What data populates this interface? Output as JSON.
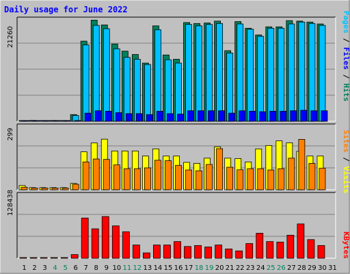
{
  "chart_data": [
    {
      "type": "bar",
      "title": "Daily usage for June 2022",
      "panel": "top",
      "max_label": "21260",
      "categories": [
        "1",
        "2",
        "3",
        "4",
        "5",
        "6",
        "7",
        "8",
        "9",
        "10",
        "11",
        "12",
        "13",
        "14",
        "15",
        "16",
        "17",
        "18",
        "19",
        "20",
        "21",
        "22",
        "23",
        "24",
        "25",
        "26",
        "27",
        "28",
        "29",
        "30",
        "31"
      ],
      "weekend_days": [
        "4",
        "5",
        "11",
        "12",
        "18",
        "19",
        "25",
        "26"
      ],
      "right_label": {
        "pages": "Pages",
        "sep1": " / ",
        "files": "Files",
        "sep2": " / ",
        "hits": "Hits"
      },
      "ylim": [
        0,
        21260
      ],
      "series": [
        {
          "name": "Hits",
          "color": "#00805c",
          "values": [
            150,
            180,
            160,
            170,
            160,
            1400,
            16800,
            21200,
            20200,
            16200,
            14700,
            14000,
            12200,
            20000,
            13900,
            13000,
            20700,
            20500,
            20600,
            21000,
            14800,
            20900,
            19500,
            18100,
            19800,
            19800,
            21100,
            21000,
            20800,
            20400,
            0
          ]
        },
        {
          "name": "Files",
          "color": "#00c0ff",
          "values": [
            110,
            130,
            120,
            130,
            120,
            1200,
            16000,
            20100,
            19400,
            15200,
            13400,
            13000,
            11900,
            19200,
            12900,
            12200,
            20300,
            20000,
            20300,
            20500,
            14300,
            20400,
            19300,
            17800,
            19500,
            19500,
            20400,
            20800,
            20500,
            20100,
            0
          ]
        },
        {
          "name": "Pages",
          "color": "#0000ff",
          "values": [
            20,
            20,
            20,
            20,
            20,
            100,
            1700,
            2200,
            2100,
            1800,
            1600,
            1600,
            1400,
            2100,
            1600,
            1500,
            2200,
            2200,
            2200,
            2200,
            1700,
            2200,
            2100,
            2000,
            2100,
            2100,
            2200,
            2300,
            2200,
            2200,
            0
          ]
        }
      ]
    },
    {
      "type": "bar",
      "panel": "middle",
      "max_label": "299",
      "categories": [
        "1",
        "2",
        "3",
        "4",
        "5",
        "6",
        "7",
        "8",
        "9",
        "10",
        "11",
        "12",
        "13",
        "14",
        "15",
        "16",
        "17",
        "18",
        "19",
        "20",
        "21",
        "22",
        "23",
        "24",
        "25",
        "26",
        "27",
        "28",
        "29",
        "30",
        "31"
      ],
      "right_label": {
        "sites": "Sites",
        "sep": " / ",
        "visits": "Visits"
      },
      "ylim": [
        0,
        299
      ],
      "series": [
        {
          "name": "Visits",
          "color": "#ffff00",
          "values": [
            20,
            10,
            10,
            10,
            10,
            30,
            180,
            222,
            240,
            184,
            184,
            184,
            160,
            194,
            160,
            160,
            130,
            125,
            150,
            204,
            150,
            148,
            132,
            194,
            210,
            232,
            223,
            182,
            160,
            160,
            0
          ]
        },
        {
          "name": "Sites",
          "color": "#ff8000",
          "values": [
            12,
            8,
            8,
            8,
            8,
            26,
            132,
            146,
            144,
            118,
            100,
            100,
            104,
            140,
            138,
            116,
            94,
            90,
            120,
            195,
            107,
            95,
            100,
            100,
            94,
            100,
            150,
            239,
            125,
            102,
            0
          ]
        }
      ]
    },
    {
      "type": "bar",
      "panel": "bottom",
      "max_label": "128438",
      "categories": [
        "1",
        "2",
        "3",
        "4",
        "5",
        "6",
        "7",
        "8",
        "9",
        "10",
        "11",
        "12",
        "13",
        "14",
        "15",
        "16",
        "17",
        "18",
        "19",
        "20",
        "21",
        "22",
        "23",
        "24",
        "25",
        "26",
        "27",
        "28",
        "29",
        "30",
        "31"
      ],
      "right_label": {
        "kbytes": "KBytes"
      },
      "ylim": [
        0,
        128438
      ],
      "series": [
        {
          "name": "KBytes",
          "color": "#ff0000",
          "values": [
            50,
            50,
            50,
            50,
            50,
            7500,
            82000,
            60000,
            85000,
            66000,
            54000,
            27000,
            11000,
            27000,
            27000,
            34000,
            24000,
            26000,
            23000,
            27000,
            19000,
            15000,
            30000,
            51000,
            34000,
            33000,
            47000,
            70000,
            38000,
            26000,
            0
          ]
        }
      ]
    }
  ]
}
